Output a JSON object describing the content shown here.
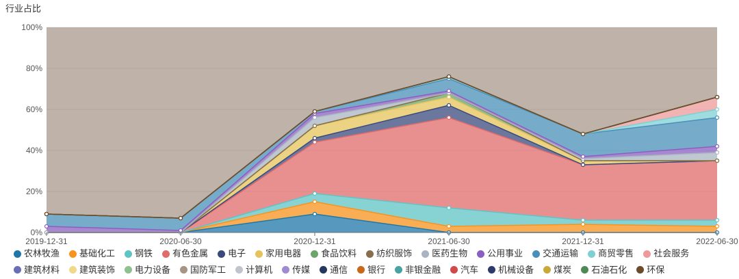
{
  "chart_data": {
    "type": "area",
    "stacked": true,
    "percent": true,
    "title": "行业占比",
    "x": [
      "2019-12-31",
      "2020-06-30",
      "2020-12-31",
      "2021-06-30",
      "2021-12-31",
      "2022-06-30"
    ],
    "yticks": [
      "0%",
      "20%",
      "40%",
      "60%",
      "80%",
      "100%"
    ],
    "ylim": [
      0,
      100
    ],
    "grid": true,
    "legend_position": "bottom",
    "series": [
      {
        "name": "农林牧渔",
        "color": "#1f77a8",
        "values": [
          0,
          0,
          9,
          0,
          0,
          0
        ]
      },
      {
        "name": "基础化工",
        "color": "#f7931e",
        "values": [
          0,
          0,
          6,
          3,
          4,
          3
        ]
      },
      {
        "name": "钢铁",
        "color": "#5fc4c6",
        "values": [
          0,
          0,
          4,
          9,
          2,
          3
        ]
      },
      {
        "name": "有色金属",
        "color": "#e06b6b",
        "values": [
          0,
          0,
          25,
          44,
          27,
          29
        ]
      },
      {
        "name": "电子",
        "color": "#3a4a7c",
        "values": [
          0,
          0,
          2,
          6,
          0,
          0
        ]
      },
      {
        "name": "家用电器",
        "color": "#e6c35a",
        "values": [
          0,
          0,
          6,
          4,
          2,
          0
        ]
      },
      {
        "name": "食品饮料",
        "color": "#6aa66a",
        "values": [
          0,
          0,
          0,
          2,
          0,
          0
        ]
      },
      {
        "name": "纺织服饰",
        "color": "#8a6e4b",
        "values": [
          0,
          0,
          0,
          0,
          0,
          0
        ]
      },
      {
        "name": "医药生物",
        "color": "#a9b4c2",
        "values": [
          0,
          0,
          4,
          0,
          1,
          4
        ]
      },
      {
        "name": "公用事业",
        "color": "#8a5fc0",
        "values": [
          3,
          1,
          2,
          1,
          1,
          3
        ]
      },
      {
        "name": "交通运输",
        "color": "#4a8fb8",
        "values": [
          6,
          6,
          1,
          6,
          11,
          14
        ]
      },
      {
        "name": "商贸零售",
        "color": "#7fd0d4",
        "values": [
          0,
          0,
          0,
          1,
          0,
          4
        ]
      },
      {
        "name": "社会服务",
        "color": "#ee9a9a",
        "values": [
          0,
          0,
          0,
          0,
          0,
          6
        ]
      },
      {
        "name": "建筑材料",
        "color": "#6a6fb5",
        "values": [
          0,
          0,
          0,
          0,
          0,
          0
        ]
      },
      {
        "name": "建筑装饰",
        "color": "#f0d98a",
        "values": [
          0,
          0,
          0,
          0,
          0,
          0
        ]
      },
      {
        "name": "电力设备",
        "color": "#8fc08f",
        "values": [
          0,
          0,
          0,
          0,
          0,
          0
        ]
      },
      {
        "name": "国防军工",
        "color": "#a89484",
        "values": [
          0,
          0,
          0,
          0,
          0,
          0
        ]
      },
      {
        "name": "计算机",
        "color": "#c0c4cc",
        "values": [
          0,
          0,
          0,
          0,
          0,
          0
        ]
      },
      {
        "name": "传媒",
        "color": "#a08ad0",
        "values": [
          0,
          0,
          0,
          0,
          0,
          0
        ]
      },
      {
        "name": "通信",
        "color": "#23375f",
        "values": [
          0,
          0,
          0,
          0,
          0,
          0
        ]
      },
      {
        "name": "银行",
        "color": "#c8691a",
        "values": [
          0,
          0,
          0,
          0,
          0,
          0
        ]
      },
      {
        "name": "非银金融",
        "color": "#4aa3a3",
        "values": [
          0,
          0,
          0,
          0,
          0,
          0
        ]
      },
      {
        "name": "汽车",
        "color": "#d14a4a",
        "values": [
          0,
          0,
          0,
          0,
          0,
          0
        ]
      },
      {
        "name": "机械设备",
        "color": "#2e3a6c",
        "values": [
          0,
          0,
          0,
          0,
          0,
          0
        ]
      },
      {
        "name": "煤炭",
        "color": "#c9a93a",
        "values": [
          0,
          0,
          0,
          0,
          0,
          0
        ]
      },
      {
        "name": "石油石化",
        "color": "#4f8a55",
        "values": [
          0,
          0,
          0,
          0,
          0,
          0
        ]
      },
      {
        "name": "环保",
        "color": "#6b4a2e",
        "values": [
          0,
          0,
          0,
          0,
          0,
          0
        ]
      }
    ]
  }
}
